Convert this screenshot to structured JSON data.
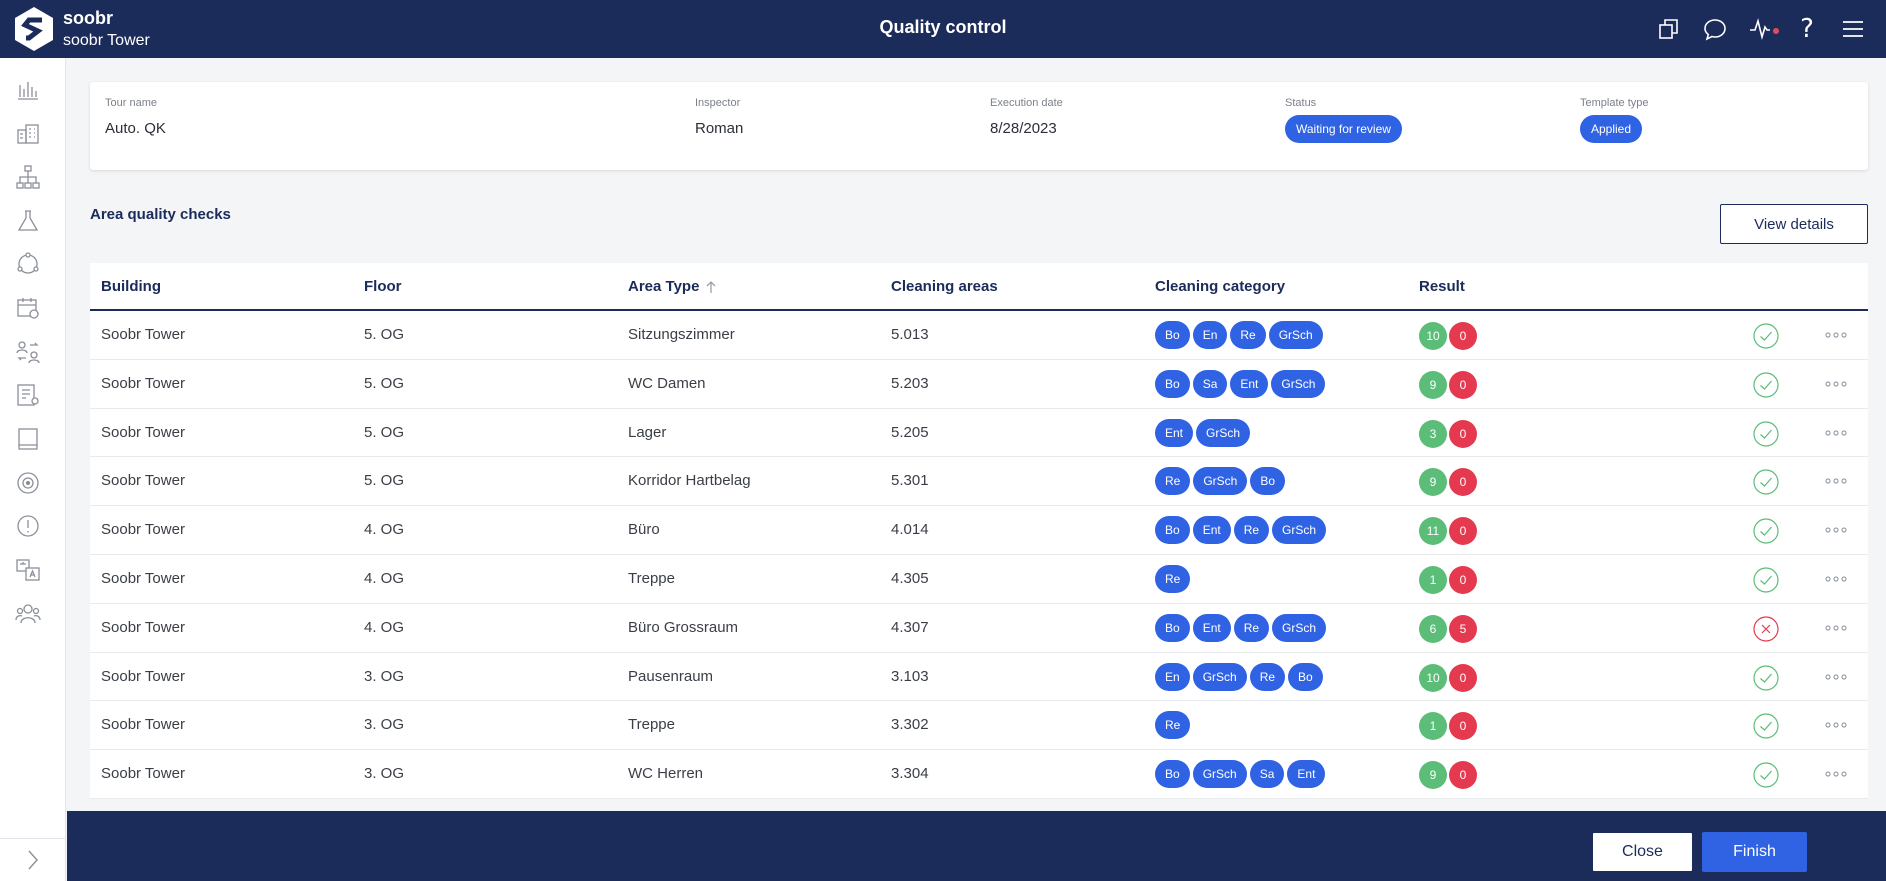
{
  "header": {
    "brand_name": "soobr",
    "site_name": "soobr Tower",
    "title": "Quality control",
    "icons": [
      "copy-icon",
      "chat-icon",
      "activity-icon",
      "help-icon",
      "menu-icon"
    ],
    "help_glyph": "?"
  },
  "sidebar": {
    "icons": [
      "bar-chart-icon",
      "buildings-icon",
      "hierarchy-icon",
      "flask-icon",
      "cycle-icon",
      "calendar-icon",
      "people-swap-icon",
      "checklist-icon",
      "book-icon",
      "target-icon",
      "alert-icon",
      "translate-icon",
      "team-icon"
    ],
    "expand_icon": "chevron-right-icon"
  },
  "tour": {
    "tour_name_label": "Tour name",
    "tour_name": "Auto. QK",
    "inspector_label": "Inspector",
    "inspector": "Roman",
    "execution_date_label": "Execution date",
    "execution_date": "8/28/2023",
    "status_label": "Status",
    "status": "Waiting for review",
    "template_type_label": "Template type",
    "template_type": "Applied"
  },
  "section": {
    "title": "Area quality checks",
    "view_details_label": "View details"
  },
  "table": {
    "columns": [
      "Building",
      "Floor",
      "Area Type",
      "Cleaning areas",
      "Cleaning category",
      "Result"
    ],
    "rows": [
      {
        "building": "Soobr Tower",
        "floor": "5. OG",
        "area_type": "Sitzungszimmer",
        "cleaning_area": "5.013",
        "categories": [
          "Bo",
          "En",
          "Re",
          "GrSch"
        ],
        "ok": "10",
        "bad": "0",
        "status": "pass"
      },
      {
        "building": "Soobr Tower",
        "floor": "5. OG",
        "area_type": "WC Damen",
        "cleaning_area": "5.203",
        "categories": [
          "Bo",
          "Sa",
          "Ent",
          "GrSch"
        ],
        "ok": "9",
        "bad": "0",
        "status": "pass"
      },
      {
        "building": "Soobr Tower",
        "floor": "5. OG",
        "area_type": "Lager",
        "cleaning_area": "5.205",
        "categories": [
          "Ent",
          "GrSch"
        ],
        "ok": "3",
        "bad": "0",
        "status": "pass"
      },
      {
        "building": "Soobr Tower",
        "floor": "5. OG",
        "area_type": "Korridor Hartbelag",
        "cleaning_area": "5.301",
        "categories": [
          "Re",
          "GrSch",
          "Bo"
        ],
        "ok": "9",
        "bad": "0",
        "status": "pass"
      },
      {
        "building": "Soobr Tower",
        "floor": "4. OG",
        "area_type": "Büro",
        "cleaning_area": "4.014",
        "categories": [
          "Bo",
          "Ent",
          "Re",
          "GrSch"
        ],
        "ok": "11",
        "bad": "0",
        "status": "pass"
      },
      {
        "building": "Soobr Tower",
        "floor": "4. OG",
        "area_type": "Treppe",
        "cleaning_area": "4.305",
        "categories": [
          "Re"
        ],
        "ok": "1",
        "bad": "0",
        "status": "pass"
      },
      {
        "building": "Soobr Tower",
        "floor": "4. OG",
        "area_type": "Büro Grossraum",
        "cleaning_area": "4.307",
        "categories": [
          "Bo",
          "Ent",
          "Re",
          "GrSch"
        ],
        "ok": "6",
        "bad": "5",
        "status": "fail"
      },
      {
        "building": "Soobr Tower",
        "floor": "3. OG",
        "area_type": "Pausenraum",
        "cleaning_area": "3.103",
        "categories": [
          "En",
          "GrSch",
          "Re",
          "Bo"
        ],
        "ok": "10",
        "bad": "0",
        "status": "pass"
      },
      {
        "building": "Soobr Tower",
        "floor": "3. OG",
        "area_type": "Treppe",
        "cleaning_area": "3.302",
        "categories": [
          "Re"
        ],
        "ok": "1",
        "bad": "0",
        "status": "pass"
      },
      {
        "building": "Soobr Tower",
        "floor": "3. OG",
        "area_type": "WC Herren",
        "cleaning_area": "3.304",
        "categories": [
          "Bo",
          "GrSch",
          "Sa",
          "Ent"
        ],
        "ok": "9",
        "bad": "0",
        "status": "pass"
      }
    ]
  },
  "footer": {
    "close_label": "Close",
    "finish_label": "Finish"
  },
  "colors": {
    "navy": "#1b2b5a",
    "accent": "#2f63e4",
    "success": "#5bbd77",
    "danger": "#e5394f"
  }
}
